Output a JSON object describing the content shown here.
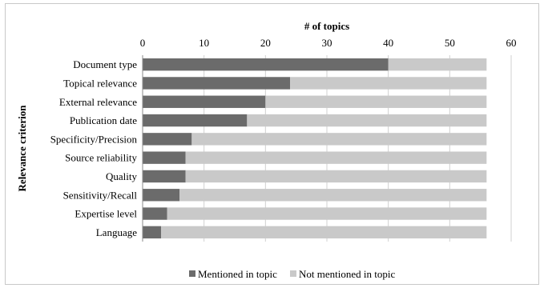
{
  "chart_data": {
    "type": "bar",
    "orientation": "horizontal",
    "stacked": true,
    "xlabel": "# of topics",
    "ylabel": "Relevance criterion",
    "xlim": [
      0,
      60
    ],
    "xticks": [
      0,
      10,
      20,
      30,
      40,
      50,
      60
    ],
    "x_axis_position": "top",
    "grid": "vertical",
    "legend_position": "bottom",
    "categories": [
      "Document type",
      "Topical relevance",
      "External relevance",
      "Publication date",
      "Specificity/Precision",
      "Source reliability",
      "Quality",
      "Sensitivity/Recall",
      "Expertise level",
      "Language"
    ],
    "series": [
      {
        "name": "Mentioned in topic",
        "color": "#6b6b6b",
        "values": [
          40,
          24,
          20,
          17,
          8,
          7,
          7,
          6,
          4,
          3
        ]
      },
      {
        "name": "Not mentioned in topic",
        "color": "#c9c9c9",
        "values": [
          16,
          32,
          36,
          39,
          48,
          49,
          49,
          50,
          52,
          53
        ]
      }
    ]
  }
}
